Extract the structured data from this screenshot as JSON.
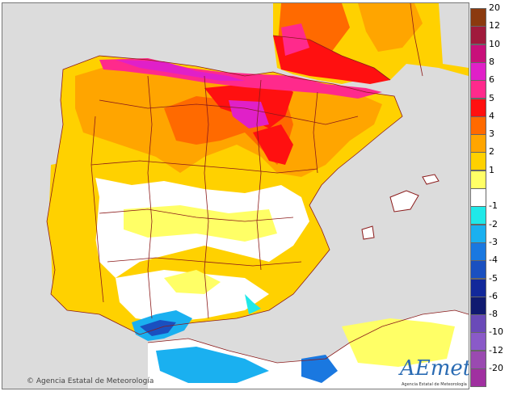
{
  "map": {
    "credit": "Agencia Estatal de Meteorología",
    "logo_text": "AEmet",
    "logo_sub": "Agencia Estatal de Meteorología",
    "sea_color": "#dcdcdc",
    "border_color": "#8b1a1a"
  },
  "legend": {
    "items": [
      {
        "label": "20",
        "color": "#8b3a0f"
      },
      {
        "label": "12",
        "color": "#a01a3c"
      },
      {
        "label": "10",
        "color": "#c8107a"
      },
      {
        "label": "8",
        "color": "#e020c8"
      },
      {
        "label": "6",
        "color": "#ff2a8c"
      },
      {
        "label": "5",
        "color": "#ff1010"
      },
      {
        "label": "4",
        "color": "#ff6a00"
      },
      {
        "label": "3",
        "color": "#ffa500"
      },
      {
        "label": "2",
        "color": "#ffd100"
      },
      {
        "label": "1",
        "color": "#ffff66"
      },
      {
        "label": "",
        "color": "#ffffff"
      },
      {
        "label": "-1",
        "color": "#20e8e8"
      },
      {
        "label": "-2",
        "color": "#1ab0f0"
      },
      {
        "label": "-3",
        "color": "#1a78e0"
      },
      {
        "label": "-4",
        "color": "#1a50c0"
      },
      {
        "label": "-5",
        "color": "#12289a"
      },
      {
        "label": "-6",
        "color": "#101a70"
      },
      {
        "label": "-8",
        "color": "#6a4ab8"
      },
      {
        "label": "-10",
        "color": "#8a5ac8"
      },
      {
        "label": "-12",
        "color": "#9a4ab0"
      },
      {
        "label": "-20",
        "color": "#a030a0"
      }
    ]
  }
}
